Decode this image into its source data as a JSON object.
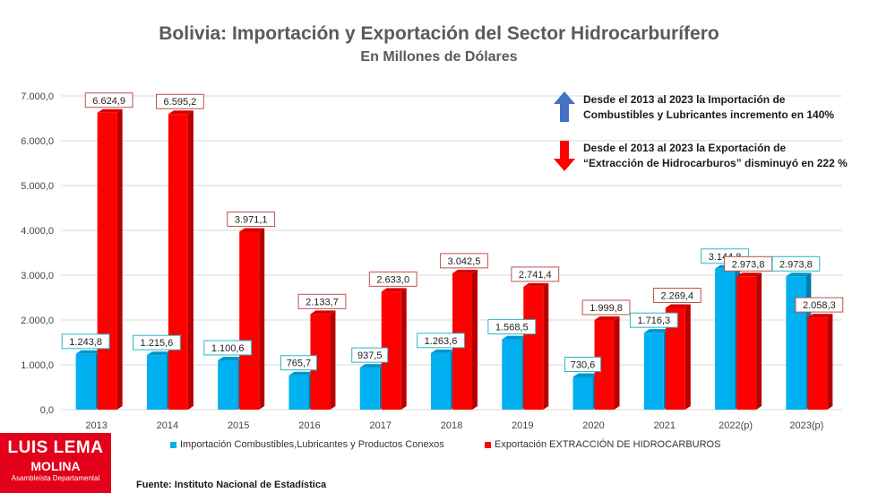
{
  "title": "Bolivia: Importación y Exportación del Sector Hidrocarburífero",
  "subtitle": "En Millones de Dólares",
  "annotations": {
    "import_note": [
      "Desde el 2013 al 2023 la Importación de",
      "Combustibles y Lubricantes incremento  en 140%"
    ],
    "export_note": [
      "Desde el 2013 al 2023 la Exportación de",
      "“Extracción de Hidrocarburos” disminuyó en 222 %"
    ]
  },
  "logo": {
    "line1": "LUIS LEMA",
    "line2": "MOLINA",
    "line3": "Asambleísta Departamental"
  },
  "source": "Fuente: Instituto Nacional de Estadística",
  "colors": {
    "import": "#00b0f0",
    "export": "#ff0000",
    "arrow_up": "#4472c4",
    "arrow_down": "#ff0000",
    "grid": "#d9d9d9"
  },
  "chart_data": {
    "type": "bar",
    "categories": [
      "2013",
      "2014",
      "2015",
      "2016",
      "2017",
      "2018",
      "2019",
      "2020",
      "2021",
      "2022(p)",
      "2023(p)"
    ],
    "series": [
      {
        "name": "Importación Combustibles,Lubricantes y Productos Conexos",
        "values": [
          1243.8,
          1215.6,
          1100.6,
          765.7,
          937.5,
          1263.6,
          1568.5,
          730.6,
          1716.3,
          3144.8,
          2973.8
        ],
        "labels": [
          "1.243,8",
          "1.215,6",
          "1.100,6",
          "765,7",
          "937,5",
          "1.263,6",
          "1.568,5",
          "730,6",
          "1.716,3",
          "3.144,8",
          "2.973,8"
        ]
      },
      {
        "name": "Exportación EXTRACCIÓN DE HIDROCARBUROS",
        "values": [
          6624.9,
          6595.2,
          3971.1,
          2133.7,
          2633.0,
          3042.5,
          2741.4,
          1999.8,
          2269.4,
          2973.8,
          2058.3
        ],
        "labels": [
          "6.624,9",
          "6.595,2",
          "3.971,1",
          "2.133,7",
          "2.633,0",
          "3.042,5",
          "2.741,4",
          "1.999,8",
          "2.269,4",
          "2.973,8",
          "2.058,3"
        ]
      }
    ],
    "yticks": [
      "0,0",
      "1.000,0",
      "2.000,0",
      "3.000,0",
      "4.000,0",
      "5.000,0",
      "6.000,0",
      "7.000,0"
    ],
    "ylim": [
      0,
      7000
    ],
    "grid": true,
    "legend": "bottom"
  }
}
